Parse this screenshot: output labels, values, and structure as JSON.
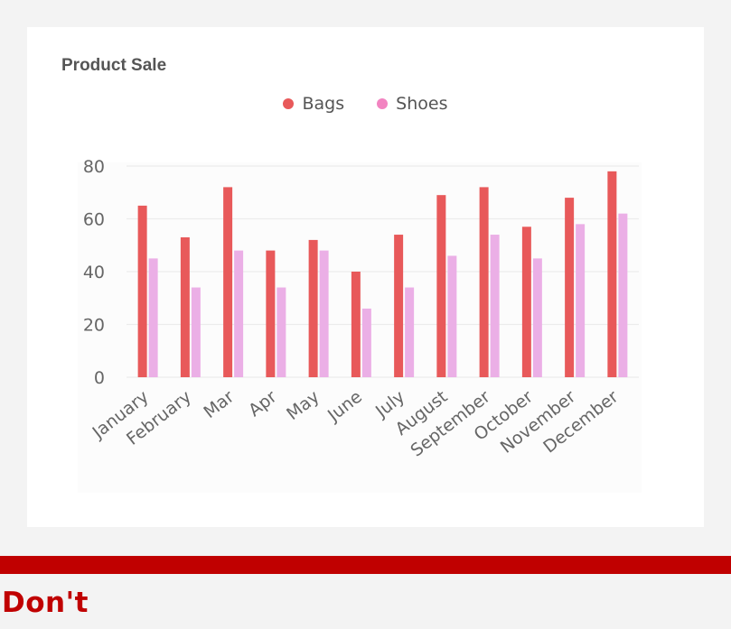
{
  "footer": {
    "label": "Don't"
  },
  "chart_data": {
    "type": "bar",
    "title": "Product Sale",
    "xlabel": "",
    "ylabel": "",
    "categories": [
      "January",
      "February",
      "Mar",
      "Apr",
      "May",
      "June",
      "July",
      "August",
      "September",
      "October",
      "November",
      "December"
    ],
    "series": [
      {
        "name": "Bags",
        "color": "#e8595a",
        "values": [
          65,
          53,
          72,
          48,
          52,
          40,
          54,
          69,
          72,
          57,
          68,
          78
        ]
      },
      {
        "name": "Shoes",
        "color": "#ebafe6",
        "values": [
          45,
          34,
          48,
          34,
          48,
          26,
          34,
          46,
          54,
          45,
          58,
          62
        ]
      }
    ],
    "legend_marker_colors": [
      "#e8595a",
      "#f284c1"
    ],
    "ylim": [
      0,
      80
    ],
    "yticks": [
      "0",
      "20",
      "40",
      "60",
      "80"
    ],
    "grid": true,
    "legend_position": "top-center"
  }
}
